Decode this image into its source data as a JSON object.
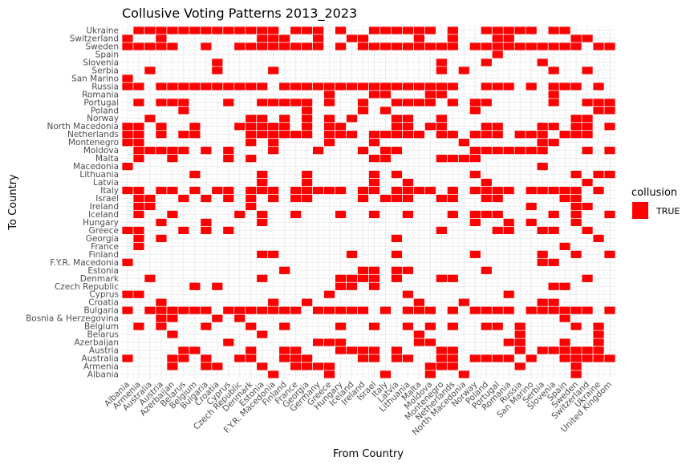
{
  "chart_data": {
    "type": "heatmap",
    "title": "Collusive Voting Patterns 2013_2023",
    "xlabel": "From Country",
    "ylabel": "To Country",
    "x_categories": [
      "Albania",
      "Armenia",
      "Australia",
      "Austria",
      "Azerbaijan",
      "Belarus",
      "Belgium",
      "Bulgaria",
      "Croatia",
      "Cyprus",
      "Czech Republic",
      "Denmark",
      "Estonia",
      "F.Y.R. Macedonia",
      "Finland",
      "France",
      "Georgia",
      "Germany",
      "Greece",
      "Hungary",
      "Iceland",
      "Ireland",
      "Israel",
      "Italy",
      "Latvia",
      "Lithuania",
      "Malta",
      "Moldova",
      "Montenegro",
      "Netherlands",
      "North Macedonia",
      "Norway",
      "Poland",
      "Portugal",
      "Romania",
      "Russia",
      "San Marino",
      "Serbia",
      "Slovenia",
      "Spain",
      "Sweden",
      "Switzerland",
      "Ukraine",
      "United Kingdom"
    ],
    "y_categories": [
      "Albania",
      "Armenia",
      "Australia",
      "Austria",
      "Azerbaijan",
      "Belarus",
      "Belgium",
      "Bosnia & Herzegovina",
      "Bulgaria",
      "Croatia",
      "Cyprus",
      "Czech Republic",
      "Denmark",
      "Estonia",
      "F.Y.R. Macedonia",
      "Finland",
      "France",
      "Georgia",
      "Greece",
      "Hungary",
      "Iceland",
      "Ireland",
      "Israel",
      "Italy",
      "Latvia",
      "Lithuania",
      "Macedonia",
      "Malta",
      "Moldova",
      "Montenegro",
      "Netherlands",
      "North Macedonia",
      "Norway",
      "Poland",
      "Portugal",
      "Romania",
      "Russia",
      "San Marino",
      "Serbia",
      "Slovenia",
      "Spain",
      "Sweden",
      "Switzerland",
      "Ukraine"
    ],
    "fill_color": "#FF0000",
    "grid": true,
    "legend": {
      "title": "collusion",
      "entries": [
        "TRUE"
      ],
      "position": "right"
    },
    "cells_by_to_country": {
      "Ukraine": [
        "Armenia",
        "Australia",
        "Austria",
        "Azerbaijan",
        "Belarus",
        "Belgium",
        "Bulgaria",
        "Croatia",
        "Cyprus",
        "Czech Republic",
        "Denmark",
        "Estonia",
        "F.Y.R. Macedonia",
        "France",
        "Georgia",
        "Germany",
        "Hungary",
        "Israel",
        "Italy",
        "Latvia",
        "Lithuania",
        "Malta",
        "Moldova",
        "Netherlands",
        "Poland",
        "Portugal",
        "Romania",
        "Russia",
        "San Marino",
        "Slovenia",
        "Spain"
      ],
      "Switzerland": [
        "Albania",
        "Austria",
        "Estonia",
        "F.Y.R. Macedonia",
        "Finland",
        "Germany",
        "Iceland",
        "Ireland",
        "Malta",
        "Netherlands",
        "Portugal",
        "Romania",
        "Sweden",
        "Switzerland"
      ],
      "Sweden": [
        "Albania",
        "Armenia",
        "Australia",
        "Austria",
        "Azerbaijan",
        "Bulgaria",
        "Czech Republic",
        "Denmark",
        "Estonia",
        "F.Y.R. Macedonia",
        "Finland",
        "France",
        "Georgia",
        "Germany",
        "Hungary",
        "Ireland",
        "Israel",
        "Italy",
        "Latvia",
        "Lithuania",
        "Malta",
        "Moldova",
        "Montenegro",
        "Netherlands",
        "Norway",
        "Poland",
        "Portugal",
        "Romania",
        "Russia",
        "San Marino",
        "Serbia",
        "Slovenia",
        "Spain",
        "Sweden",
        "Ukraine",
        "United Kingdom"
      ],
      "Spain": [
        "Portugal"
      ],
      "Slovenia": [
        "Croatia",
        "Montenegro",
        "Poland",
        "Serbia"
      ],
      "Serbia": [
        "Australia",
        "Croatia",
        "F.Y.R. Macedonia",
        "Montenegro",
        "North Macedonia",
        "Slovenia",
        "Switzerland"
      ],
      "San Marino": [
        "Albania"
      ],
      "Russia": [
        "Albania",
        "Armenia",
        "Austria",
        "Azerbaijan",
        "Belarus",
        "Belgium",
        "Bulgaria",
        "Croatia",
        "Cyprus",
        "Czech Republic",
        "Denmark",
        "Estonia",
        "Finland",
        "France",
        "Georgia",
        "Germany",
        "Greece",
        "Hungary",
        "Iceland",
        "Ireland",
        "Israel",
        "Italy",
        "Latvia",
        "Lithuania",
        "Malta",
        "Moldova",
        "Montenegro",
        "Netherlands",
        "Poland",
        "Portugal",
        "Romania",
        "San Marino",
        "Slovenia",
        "Spain",
        "Sweden",
        "Ukraine"
      ],
      "Romania": [
        "Greece",
        "Israel",
        "Italy",
        "Moldova",
        "Montenegro",
        "Slovenia"
      ],
      "Portugal": [
        "Armenia",
        "Austria",
        "Azerbaijan",
        "Belarus",
        "Cyprus",
        "Estonia",
        "F.Y.R. Macedonia",
        "Finland",
        "France",
        "Georgia",
        "Greece",
        "Ireland",
        "Latvia",
        "Lithuania",
        "Malta",
        "Moldova",
        "Netherlands",
        "Norway",
        "Poland",
        "Slovenia",
        "Switzerland",
        "Ukraine",
        "United Kingdom"
      ],
      "Poland": [
        "Belarus",
        "Georgia",
        "Ireland",
        "Italy",
        "Norway",
        "Ukraine",
        "United Kingdom"
      ],
      "Norway": [
        "Australia",
        "Denmark",
        "Estonia",
        "Finland",
        "Georgia",
        "Greece",
        "Iceland",
        "Latvia",
        "Lithuania",
        "Montenegro",
        "Sweden",
        "Switzerland"
      ],
      "North Macedonia": [
        "Albania",
        "Armenia",
        "Austria",
        "Belgium",
        "Czech Republic",
        "Denmark",
        "Estonia",
        "F.Y.R. Macedonia",
        "Finland",
        "Georgia",
        "Greece",
        "Hungary",
        "Latvia",
        "Lithuania",
        "Moldova",
        "Montenegro",
        "Poland",
        "Portugal",
        "Serbia",
        "Slovenia",
        "Sweden",
        "Switzerland",
        "United Kingdom"
      ],
      "Netherlands": [
        "Albania",
        "Armenia",
        "Austria",
        "Belarus",
        "Belgium",
        "Denmark",
        "Estonia",
        "F.Y.R. Macedonia",
        "Finland",
        "France",
        "Georgia",
        "Greece",
        "Hungary",
        "Iceland",
        "Israel",
        "Italy",
        "Latvia",
        "Lithuania",
        "Malta",
        "Montenegro",
        "Netherlands",
        "Norway",
        "Poland",
        "Portugal",
        "Russia",
        "San Marino",
        "Serbia",
        "Spain",
        "Sweden",
        "Switzerland"
      ],
      "Montenegro": [
        "Albania",
        "Armenia",
        "Denmark",
        "F.Y.R. Macedonia",
        "Greece",
        "Israel",
        "North Macedonia",
        "Serbia",
        "Slovenia"
      ],
      "Moldova": [
        "Armenia",
        "Australia",
        "Austria",
        "Azerbaijan",
        "Belarus",
        "Bulgaria",
        "Cyprus",
        "F.Y.R. Macedonia",
        "Germany",
        "Ireland",
        "Italy",
        "Latvia",
        "Norway",
        "Poland",
        "Portugal",
        "Romania",
        "Russia",
        "San Marino",
        "Serbia",
        "Switzerland",
        "United Kingdom"
      ],
      "Malta": [
        "Armenia",
        "Azerbaijan",
        "Cyprus",
        "Denmark",
        "Israel",
        "Italy",
        "Montenegro",
        "Netherlands",
        "North Macedonia",
        "Norway"
      ],
      "Macedonia": [
        "Albania",
        "Serbia"
      ],
      "Lithuania": [
        "Belgium",
        "Estonia",
        "Georgia",
        "Israel",
        "Latvia",
        "Norway",
        "Sweden",
        "Ukraine",
        "United Kingdom"
      ],
      "Latvia": [
        "Estonia",
        "Georgia",
        "Israel",
        "Lithuania",
        "Poland",
        "Switzerland"
      ],
      "Italy": [
        "Albania",
        "Armenia",
        "Austria",
        "Azerbaijan",
        "Belgium",
        "Croatia",
        "Cyprus",
        "Denmark",
        "Estonia",
        "F.Y.R. Macedonia",
        "France",
        "Georgia",
        "Germany",
        "Greece",
        "Hungary",
        "Ireland",
        "Israel",
        "Latvia",
        "Lithuania",
        "Malta",
        "Moldova",
        "Netherlands",
        "Norway",
        "Poland",
        "Portugal",
        "Romania",
        "San Marino",
        "Serbia",
        "Slovenia",
        "Spain",
        "Sweden",
        "Ukraine"
      ],
      "Israel": [
        "Armenia",
        "Australia",
        "Belarus",
        "Bulgaria",
        "Cyprus",
        "Denmark",
        "F.Y.R. Macedonia",
        "France",
        "Georgia",
        "Ireland",
        "Italy",
        "Latvia",
        "Lithuania",
        "Montenegro",
        "Netherlands",
        "Poland",
        "Portugal",
        "Spain",
        "Sweden"
      ],
      "Ireland": [
        "Armenia",
        "Australia",
        "Denmark",
        "San Marino",
        "Sweden",
        "Switzerland"
      ],
      "Iceland": [
        "Armenia",
        "Azerbaijan",
        "Czech Republic",
        "Estonia",
        "France",
        "Hungary",
        "Israel",
        "Lithuania",
        "Netherlands",
        "Norway",
        "Poland",
        "Portugal",
        "Slovenia",
        "Sweden",
        "United Kingdom"
      ],
      "Hungary": [
        "Austria",
        "Bulgaria",
        "Estonia",
        "Norway",
        "Romania",
        "San Marino",
        "Sweden"
      ],
      "Greece": [
        "Albania",
        "Armenia",
        "Belarus",
        "Bulgaria",
        "Cyprus",
        "Montenegro",
        "Portugal",
        "Romania",
        "Serbia",
        "Slovenia",
        "Switzerland"
      ],
      "Georgia": [
        "Armenia",
        "Austria",
        "Latvia",
        "Ukraine"
      ],
      "France": [
        "Armenia",
        "Spain"
      ],
      "Finland": [
        "Estonia",
        "F.Y.R. Macedonia",
        "Iceland",
        "Latvia",
        "Norway",
        "Serbia",
        "Sweden",
        "United Kingdom"
      ],
      "F.Y.R. Macedonia": [
        "Albania",
        "Serbia",
        "Slovenia"
      ],
      "Estonia": [
        "Finland",
        "Ireland",
        "Israel",
        "Latvia",
        "Lithuania",
        "Poland"
      ],
      "Denmark": [
        "Australia",
        "Estonia",
        "Hungary",
        "Iceland",
        "Ireland",
        "Israel",
        "Latvia",
        "Montenegro",
        "Netherlands",
        "Switzerland"
      ],
      "Czech Republic": [
        "Belgium",
        "Croatia",
        "Hungary",
        "Iceland",
        "Israel",
        "Slovenia",
        "Spain"
      ],
      "Cyprus": [
        "Albania",
        "Armenia",
        "Greece",
        "Lithuania",
        "Romania"
      ],
      "Croatia": [
        "Austria",
        "F.Y.R. Macedonia",
        "Georgia",
        "Malta",
        "North Macedonia",
        "Serbia",
        "Slovenia"
      ],
      "Bulgaria": [
        "Albania",
        "Australia",
        "Austria",
        "Azerbaijan",
        "Belarus",
        "Belgium",
        "Bulgaria",
        "Cyprus",
        "Czech Republic",
        "Denmark",
        "Estonia",
        "F.Y.R. Macedonia",
        "Finland",
        "France",
        "Germany",
        "Greece",
        "Hungary",
        "Iceland",
        "Ireland",
        "Italy",
        "Lithuania",
        "Malta",
        "Moldova",
        "Netherlands",
        "Norway",
        "Poland",
        "Portugal",
        "Romania",
        "San Marino",
        "Serbia",
        "Slovenia",
        "Spain",
        "Sweden",
        "Switzerland",
        "United Kingdom"
      ],
      "Bosnia & Herzegovina": [
        "Austria",
        "Azerbaijan",
        "Croatia",
        "Czech Republic",
        "Spain"
      ],
      "Belgium": [
        "Armenia",
        "Austria",
        "Bulgaria",
        "Denmark",
        "Finland",
        "Hungary",
        "Israel",
        "Lithuania",
        "Moldova",
        "Netherlands",
        "Poland",
        "Portugal",
        "Russia",
        "Sweden",
        "Ukraine"
      ],
      "Belarus": [
        "Azerbaijan",
        "Estonia",
        "Malta",
        "Russia",
        "Ukraine"
      ],
      "Azerbaijan": [
        "Cyprus",
        "Germany",
        "Greece",
        "Hungary",
        "Malta",
        "Moldova",
        "Romania",
        "Russia",
        "Spain",
        "Ukraine"
      ],
      "Austria": [
        "Belarus",
        "Belgium",
        "Denmark",
        "Finland",
        "France",
        "Hungary",
        "Iceland",
        "Ireland",
        "Israel",
        "Latvia",
        "Montenegro",
        "Netherlands",
        "Russia",
        "Serbia",
        "Slovenia",
        "Spain",
        "Sweden",
        "Switzerland",
        "Ukraine"
      ],
      "Australia": [
        "Albania",
        "Azerbaijan",
        "Belarus",
        "Bulgaria",
        "Czech Republic",
        "Denmark",
        "Finland",
        "France",
        "Georgia",
        "Ireland",
        "Israel",
        "Latvia",
        "Lithuania",
        "Montenegro",
        "Netherlands",
        "Norway",
        "Poland",
        "Portugal",
        "Romania",
        "San Marino",
        "Spain",
        "Sweden",
        "Switzerland",
        "Ukraine",
        "United Kingdom"
      ],
      "Armenia": [
        "Azerbaijan",
        "Bulgaria",
        "Croatia",
        "Estonia",
        "France",
        "Georgia",
        "Germany",
        "Greece",
        "Moldova",
        "Montenegro",
        "Netherlands",
        "Russia",
        "Sweden"
      ],
      "Albania": [
        "F.Y.R. Macedonia",
        "Greece",
        "Italy",
        "Moldova",
        "North Macedonia",
        "Sweden"
      ]
    }
  }
}
